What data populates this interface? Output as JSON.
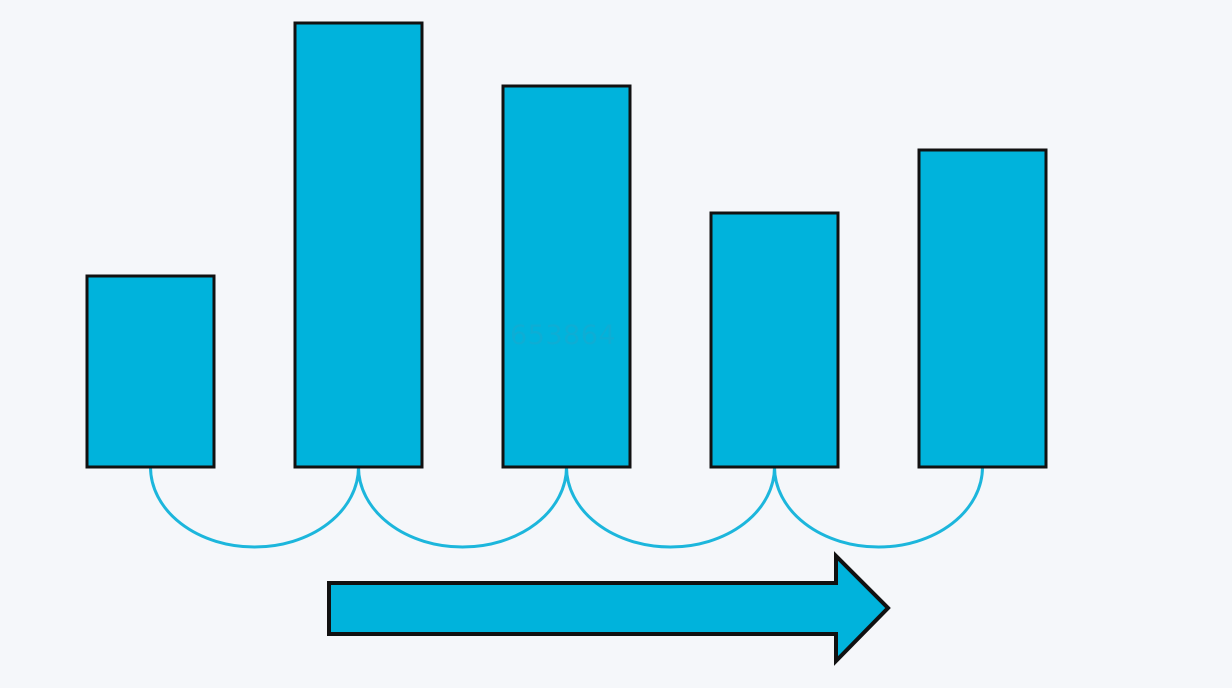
{
  "diagram": {
    "bars": [
      {
        "id": "bar-1",
        "relative_height": 0.43
      },
      {
        "id": "bar-2",
        "relative_height": 1.0
      },
      {
        "id": "bar-3",
        "relative_height": 0.857
      },
      {
        "id": "bar-4",
        "relative_height": 0.571
      },
      {
        "id": "bar-5",
        "relative_height": 0.714
      }
    ],
    "connectors": 4,
    "arrow_direction": "right",
    "watermark_text": "653864"
  },
  "colors": {
    "background": "#f5f7fa",
    "bar_fill": "#00b3dc",
    "bar_stroke": "#111111",
    "connector_stroke": "#1cb6dc",
    "arrow_fill": "#00b3dc",
    "arrow_stroke": "#111111"
  }
}
